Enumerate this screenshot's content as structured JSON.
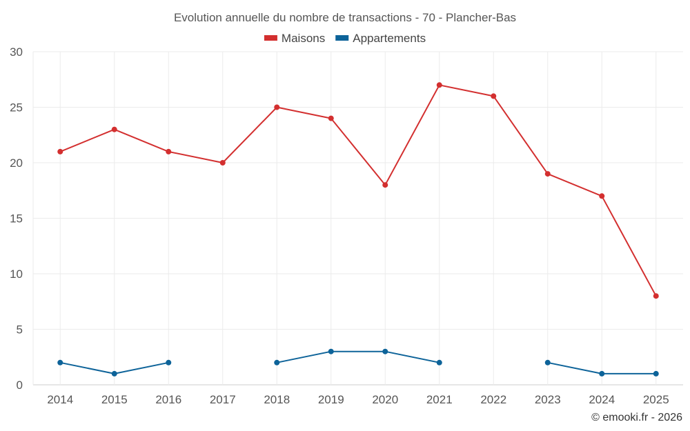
{
  "chart_data": {
    "type": "line",
    "title": "Evolution annuelle du nombre de transactions - 70 - Plancher-Bas",
    "categories": [
      "2014",
      "2015",
      "2016",
      "2017",
      "2018",
      "2019",
      "2020",
      "2021",
      "2022",
      "2023",
      "2024",
      "2025"
    ],
    "ylim": [
      0,
      30
    ],
    "yticks": [
      0,
      5,
      10,
      15,
      20,
      25,
      30
    ],
    "grid": true,
    "legend_position": "top-center",
    "series": [
      {
        "name": "Maisons",
        "color": "#d32f2f",
        "values": [
          21,
          23,
          21,
          20,
          25,
          24,
          18,
          27,
          26,
          19,
          17,
          8
        ]
      },
      {
        "name": "Appartements",
        "color": "#0d6399",
        "values": [
          2,
          1,
          2,
          null,
          2,
          3,
          3,
          2,
          null,
          2,
          1,
          1
        ]
      }
    ]
  },
  "credit": "© emooki.fr - 2026"
}
